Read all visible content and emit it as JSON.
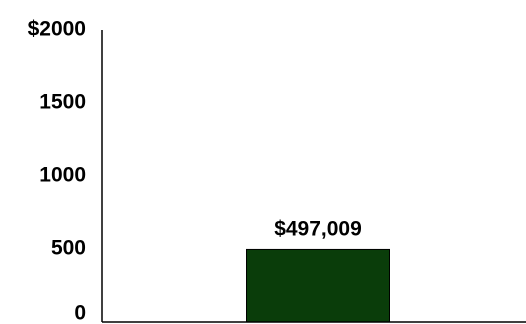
{
  "chart_data": {
    "type": "bar",
    "categories": [
      ""
    ],
    "values": [
      497009
    ],
    "data_labels": [
      "$497,009"
    ],
    "ylim": [
      0,
      2000000
    ],
    "y_ticks": [
      {
        "value": 0,
        "label": "0"
      },
      {
        "value": 500000,
        "label": "500"
      },
      {
        "value": 1000000,
        "label": "1000"
      },
      {
        "value": 1500000,
        "label": "1500"
      },
      {
        "value": 2000000,
        "label": "$2000"
      }
    ],
    "grid": false,
    "legend": "none",
    "bar_color": "#0a3d0a",
    "axis_color": "#000000"
  }
}
